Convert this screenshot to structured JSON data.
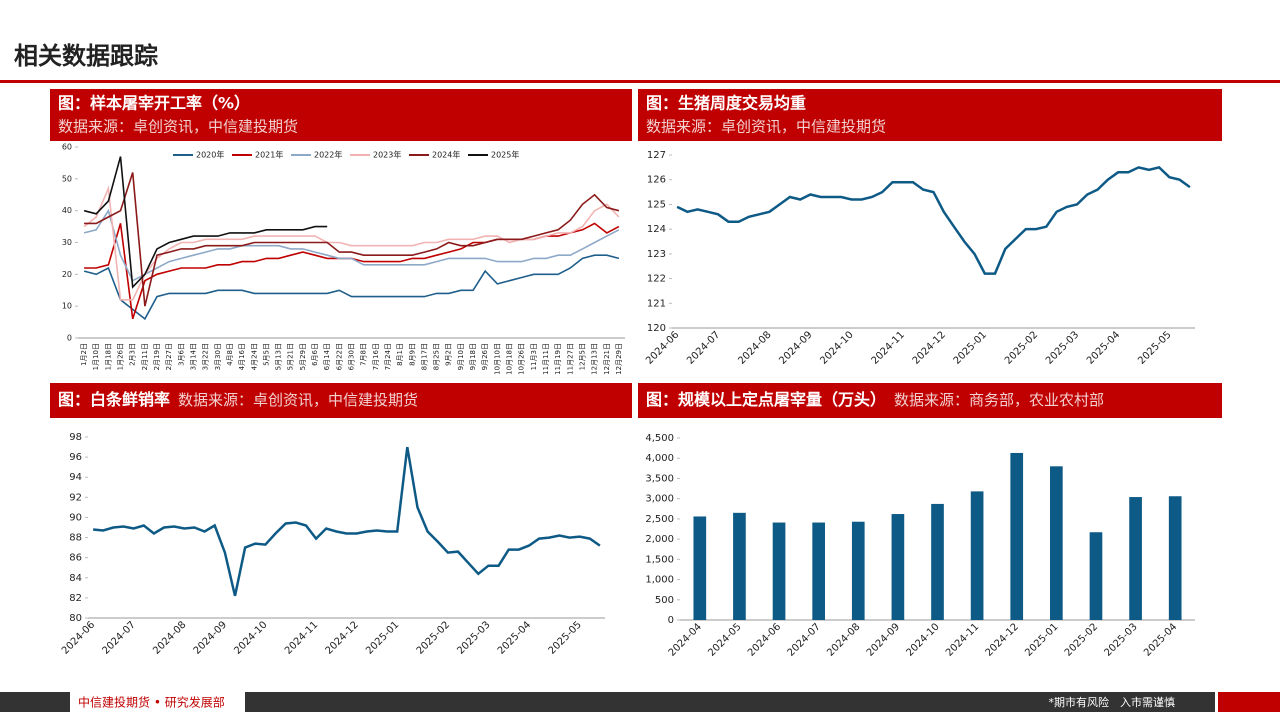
{
  "header": {
    "title": "相关数据跟踪"
  },
  "footer": {
    "left": "中信建投期货 • 研究发展部",
    "right": "*期市有风险　入市需谨慎"
  },
  "chart_data": [
    {
      "type": "line",
      "title": "图：样本屠宰开工率（%）",
      "source": "数据来源：卓创资讯，中信建投期货",
      "categories": [
        "1月2日",
        "1月10日",
        "1月18日",
        "1月26日",
        "2月3日",
        "2月11日",
        "2月19日",
        "2月27日",
        "3月6日",
        "3月14日",
        "3月22日",
        "3月30日",
        "4月8日",
        "4月16日",
        "4月24日",
        "5月5日",
        "5月13日",
        "5月21日",
        "5月29日",
        "6月6日",
        "6月14日",
        "6月22日",
        "6月30日",
        "7月8日",
        "7月16日",
        "7月24日",
        "8月1日",
        "8月9日",
        "8月17日",
        "8月25日",
        "9月2日",
        "9月10日",
        "9月18日",
        "9月26日",
        "10月10日",
        "10月18日",
        "10月26日",
        "11月3日",
        "11月11日",
        "11月19日",
        "11月27日",
        "12月5日",
        "12月13日",
        "12月21日",
        "12月29日"
      ],
      "series": [
        {
          "name": "2020年",
          "color": "#1f5f8b",
          "values": [
            21,
            20,
            22,
            12,
            9,
            6,
            13,
            14,
            14,
            14,
            14,
            15,
            15,
            15,
            14,
            14,
            14,
            14,
            14,
            14,
            14,
            15,
            13,
            13,
            13,
            13,
            13,
            13,
            13,
            14,
            14,
            15,
            15,
            21,
            17,
            18,
            19,
            20,
            20,
            20,
            22,
            25,
            26,
            26,
            25
          ]
        },
        {
          "name": "2021年",
          "color": "#c00000",
          "values": [
            22,
            22,
            23,
            36,
            6,
            18,
            20,
            21,
            22,
            22,
            22,
            23,
            23,
            24,
            24,
            25,
            25,
            26,
            27,
            26,
            25,
            25,
            25,
            24,
            24,
            24,
            24,
            25,
            25,
            26,
            27,
            28,
            30,
            30,
            31,
            31,
            31,
            31,
            32,
            32,
            33,
            34,
            36,
            33,
            35
          ]
        },
        {
          "name": "2022年",
          "color": "#8ea9c8",
          "values": [
            33,
            34,
            40,
            26,
            18,
            20,
            22,
            24,
            25,
            26,
            27,
            28,
            28,
            29,
            29,
            29,
            29,
            28,
            28,
            27,
            26,
            25,
            25,
            23,
            23,
            23,
            23,
            23,
            23,
            24,
            25,
            25,
            25,
            25,
            24,
            24,
            24,
            25,
            25,
            26,
            26,
            28,
            30,
            32,
            34
          ]
        },
        {
          "name": "2023年",
          "color": "#f2b3b3",
          "values": [
            35,
            38,
            47,
            12,
            12,
            20,
            25,
            28,
            30,
            30,
            31,
            31,
            31,
            31,
            32,
            32,
            32,
            32,
            32,
            32,
            30,
            30,
            29,
            29,
            29,
            29,
            29,
            29,
            30,
            30,
            31,
            31,
            31,
            32,
            32,
            30,
            31,
            31,
            32,
            33,
            33,
            35,
            40,
            42,
            38
          ]
        },
        {
          "name": "2024年",
          "color": "#8b1a1a",
          "values": [
            36,
            36,
            38,
            40,
            52,
            10,
            26,
            27,
            28,
            28,
            29,
            29,
            29,
            29,
            30,
            30,
            30,
            30,
            30,
            30,
            30,
            27,
            27,
            26,
            26,
            26,
            26,
            26,
            27,
            28,
            30,
            29,
            29,
            30,
            31,
            31,
            31,
            32,
            33,
            34,
            37,
            42,
            45,
            41,
            40
          ]
        },
        {
          "name": "2025年",
          "color": "#111111",
          "values": [
            40,
            39,
            43,
            57,
            16,
            20,
            28,
            30,
            31,
            32,
            32,
            32,
            33,
            33,
            33,
            34,
            34,
            34,
            34,
            35,
            35,
            null,
            null,
            null,
            null,
            null,
            null,
            null,
            null,
            null,
            null,
            null,
            null,
            null,
            null,
            null,
            null,
            null,
            null,
            null,
            null,
            null,
            null,
            null,
            null
          ]
        }
      ],
      "ylim": [
        0,
        60
      ],
      "yticks": [
        0,
        10,
        20,
        30,
        40,
        50,
        60
      ],
      "legend": "top"
    },
    {
      "type": "line",
      "title": "图：生猪周度交易均重",
      "source": "数据来源：卓创资讯，中信建投期货",
      "categories": [
        "2024-06",
        null,
        null,
        null,
        "2024-07",
        null,
        null,
        null,
        null,
        "2024-08",
        null,
        null,
        null,
        "2024-09",
        null,
        null,
        null,
        "2024-10",
        null,
        null,
        null,
        null,
        "2024-11",
        null,
        null,
        null,
        "2024-12",
        null,
        null,
        null,
        "2025-01",
        null,
        null,
        null,
        null,
        "2025-02",
        null,
        null,
        null,
        "2025-03",
        null,
        null,
        null,
        "2025-04",
        null,
        null,
        null,
        null,
        "2025-05",
        null,
        null
      ],
      "series": [
        {
          "color": "#0e5a86",
          "values": [
            124.9,
            124.7,
            124.8,
            124.7,
            124.6,
            124.3,
            124.3,
            124.5,
            124.6,
            124.7,
            125.0,
            125.3,
            125.2,
            125.4,
            125.3,
            125.3,
            125.3,
            125.2,
            125.2,
            125.3,
            125.5,
            125.9,
            125.9,
            125.9,
            125.6,
            125.5,
            124.7,
            124.1,
            123.5,
            123.0,
            122.2,
            122.2,
            123.2,
            123.6,
            124.0,
            124.0,
            124.1,
            124.7,
            124.9,
            125.0,
            125.4,
            125.6,
            126.0,
            126.3,
            126.3,
            126.5,
            126.4,
            126.5,
            126.1,
            126.0,
            125.7
          ]
        }
      ],
      "ylim": [
        120,
        127
      ],
      "yticks": [
        120,
        121,
        122,
        123,
        124,
        125,
        126,
        127
      ]
    },
    {
      "type": "line",
      "title": "图：白条鲜销率",
      "source": "数据来源：卓创资讯，中信建投期货",
      "categories": [
        "2024-06",
        null,
        null,
        null,
        "2024-07",
        null,
        null,
        null,
        null,
        "2024-08",
        null,
        null,
        null,
        "2024-09",
        null,
        null,
        null,
        "2024-10",
        null,
        null,
        null,
        null,
        "2024-11",
        null,
        null,
        null,
        "2024-12",
        null,
        null,
        null,
        "2025-01",
        null,
        null,
        null,
        null,
        "2025-02",
        null,
        null,
        null,
        "2025-03",
        null,
        null,
        null,
        "2025-04",
        null,
        null,
        null,
        null,
        "2025-05",
        null,
        null
      ],
      "series": [
        {
          "color": "#0e5a86",
          "values": [
            88.8,
            88.7,
            89.0,
            89.1,
            88.9,
            89.2,
            88.4,
            89.0,
            89.1,
            88.9,
            89.0,
            88.6,
            89.2,
            86.5,
            82.2,
            87.0,
            87.4,
            87.3,
            88.4,
            89.4,
            89.5,
            89.2,
            87.9,
            88.9,
            88.6,
            88.4,
            88.4,
            88.6,
            88.7,
            88.6,
            88.6,
            97.0,
            91.0,
            88.6,
            87.6,
            86.5,
            86.6,
            85.5,
            84.4,
            85.2,
            85.2,
            86.8,
            86.8,
            87.2,
            87.9,
            88.0,
            88.2,
            88.0,
            88.1,
            87.9,
            87.2
          ]
        }
      ],
      "ylim": [
        80,
        98
      ],
      "yticks": [
        80,
        82,
        84,
        86,
        88,
        90,
        92,
        94,
        96,
        98
      ]
    },
    {
      "type": "bar",
      "title": "图：规模以上定点屠宰量（万头）",
      "source": "数据来源：商务部，农业农村部",
      "categories": [
        "2024-04",
        "2024-05",
        "2024-06",
        "2024-07",
        "2024-08",
        "2024-09",
        "2024-10",
        "2024-11",
        "2024-12",
        "2025-01",
        "2025-02",
        "2025-03",
        "2025-04"
      ],
      "values": [
        2560,
        2650,
        2410,
        2410,
        2430,
        2620,
        2870,
        3180,
        4130,
        3800,
        2170,
        3040,
        3060
      ],
      "color": "#0e5a86",
      "ylim": [
        0,
        4500
      ],
      "yticks": [
        0,
        500,
        {
          "value": 1000,
          "label": "1,000"
        },
        {
          "value": 1500,
          "label": "1,500"
        },
        {
          "value": 2000,
          "label": "2,000"
        },
        {
          "value": 2500,
          "label": "2,500"
        },
        {
          "value": 3000,
          "label": "3,000"
        },
        {
          "value": 3500,
          "label": "3,500"
        },
        {
          "value": 4000,
          "label": "4,000"
        },
        {
          "value": 4500,
          "label": "4,500"
        }
      ]
    }
  ]
}
